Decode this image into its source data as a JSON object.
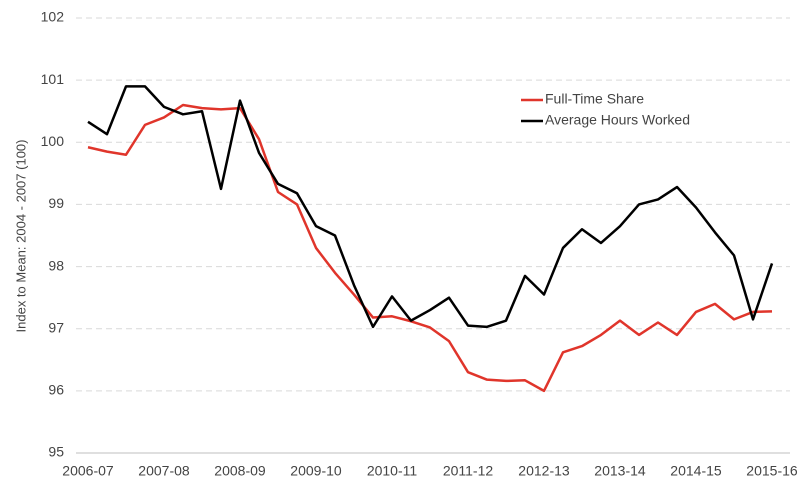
{
  "chart_data": {
    "type": "line",
    "y_label": "Index to Mean: 2004 - 2007 (100)",
    "categories": [
      "2006-07",
      null,
      null,
      null,
      "2007-08",
      null,
      null,
      null,
      "2008-09",
      null,
      null,
      null,
      "2009-10",
      null,
      null,
      null,
      "2010-11",
      null,
      null,
      null,
      "2011-12",
      null,
      null,
      null,
      "2012-13",
      null,
      null,
      null,
      "2013-14",
      null,
      null,
      null,
      "2014-15",
      null,
      null,
      null,
      "2015-16"
    ],
    "series": [
      {
        "name": "Full-Time Share",
        "color": "#e0352b",
        "values": [
          99.92,
          99.85,
          99.8,
          100.28,
          100.4,
          100.6,
          100.55,
          100.53,
          100.55,
          100.05,
          99.2,
          99.0,
          98.3,
          97.9,
          97.55,
          97.18,
          97.2,
          97.12,
          97.02,
          96.8,
          96.3,
          96.18,
          96.16,
          96.17,
          96.0,
          96.62,
          96.72,
          96.9,
          97.13,
          96.9,
          97.1,
          96.9,
          97.27,
          97.4,
          97.15,
          97.27,
          97.28
        ]
      },
      {
        "name": "Average Hours Worked",
        "color": "#000000",
        "values": [
          100.33,
          100.13,
          100.9,
          100.9,
          100.57,
          100.45,
          100.5,
          99.25,
          100.67,
          99.83,
          99.33,
          99.18,
          98.65,
          98.5,
          97.7,
          97.03,
          97.52,
          97.13,
          97.3,
          97.5,
          97.05,
          97.03,
          97.13,
          97.85,
          97.55,
          98.3,
          98.6,
          98.38,
          98.65,
          99.0,
          99.08,
          99.28,
          98.95,
          98.55,
          98.18,
          97.15,
          98.05
        ]
      }
    ],
    "ylim": [
      95,
      102
    ],
    "yticks": [
      95,
      96,
      97,
      98,
      99,
      100,
      101,
      102
    ],
    "grid": true,
    "legend": "top-right"
  }
}
